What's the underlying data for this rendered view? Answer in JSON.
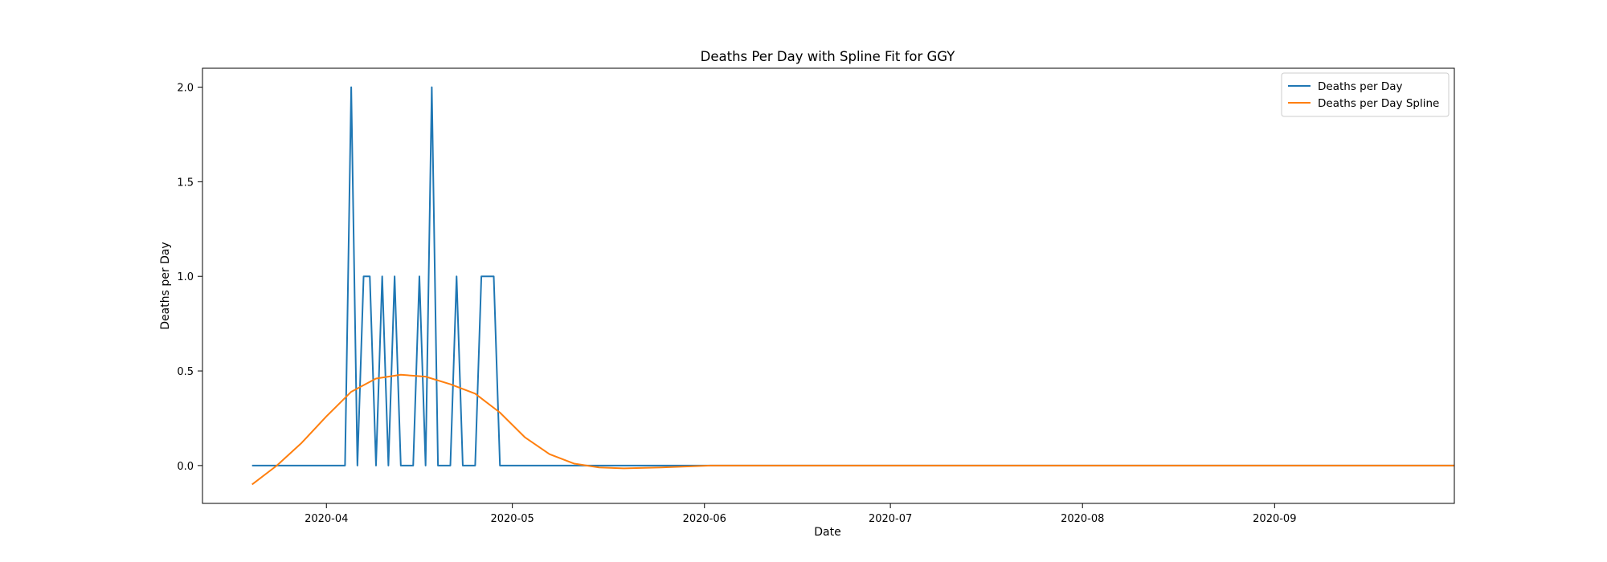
{
  "chart_data": {
    "type": "line",
    "title": "Deaths Per Day with Spline Fit for GGY",
    "xlabel": "Date",
    "ylabel": "Deaths per Day",
    "x_tick_labels": [
      "2020-04",
      "2020-05",
      "2020-06",
      "2020-07",
      "2020-08",
      "2020-09"
    ],
    "x_ticks": [
      "2020-04-01",
      "2020-05-01",
      "2020-06-01",
      "2020-07-01",
      "2020-08-01",
      "2020-09-01"
    ],
    "y_tick_labels": [
      "0.0",
      "0.5",
      "1.0",
      "1.5",
      "2.0"
    ],
    "y_ticks": [
      0,
      0.5,
      1.0,
      1.5,
      2.0
    ],
    "xlim": [
      "2020-03-12",
      "2020-09-30"
    ],
    "ylim": [
      -0.2,
      2.1
    ],
    "grid": false,
    "legend_position": "top-right",
    "series": [
      {
        "name": "Deaths per Day",
        "color": "#1f77b4",
        "points": [
          [
            "2020-03-20",
            0
          ],
          [
            "2020-04-04",
            0
          ],
          [
            "2020-04-05",
            2
          ],
          [
            "2020-04-06",
            0
          ],
          [
            "2020-04-07",
            1
          ],
          [
            "2020-04-08",
            1
          ],
          [
            "2020-04-09",
            0
          ],
          [
            "2020-04-10",
            1
          ],
          [
            "2020-04-11",
            0
          ],
          [
            "2020-04-12",
            1
          ],
          [
            "2020-04-13",
            0
          ],
          [
            "2020-04-15",
            0
          ],
          [
            "2020-04-16",
            1
          ],
          [
            "2020-04-17",
            0
          ],
          [
            "2020-04-18",
            2
          ],
          [
            "2020-04-19",
            0
          ],
          [
            "2020-04-21",
            0
          ],
          [
            "2020-04-22",
            1
          ],
          [
            "2020-04-23",
            0
          ],
          [
            "2020-04-25",
            0
          ],
          [
            "2020-04-26",
            1
          ],
          [
            "2020-04-28",
            1
          ],
          [
            "2020-04-29",
            0
          ],
          [
            "2020-09-30",
            0
          ]
        ]
      },
      {
        "name": "Deaths per Day Spline",
        "color": "#ff7f0e",
        "points": [
          [
            "2020-03-20",
            -0.1
          ],
          [
            "2020-03-24",
            0.0
          ],
          [
            "2020-03-28",
            0.12
          ],
          [
            "2020-04-01",
            0.26
          ],
          [
            "2020-04-05",
            0.39
          ],
          [
            "2020-04-09",
            0.46
          ],
          [
            "2020-04-13",
            0.48
          ],
          [
            "2020-04-17",
            0.47
          ],
          [
            "2020-04-21",
            0.43
          ],
          [
            "2020-04-25",
            0.38
          ],
          [
            "2020-04-29",
            0.28
          ],
          [
            "2020-05-03",
            0.15
          ],
          [
            "2020-05-07",
            0.06
          ],
          [
            "2020-05-11",
            0.01
          ],
          [
            "2020-05-15",
            -0.01
          ],
          [
            "2020-05-19",
            -0.015
          ],
          [
            "2020-05-25",
            -0.01
          ],
          [
            "2020-06-02",
            0.0
          ],
          [
            "2020-06-15",
            0.0
          ],
          [
            "2020-07-15",
            0.0
          ],
          [
            "2020-08-15",
            0.0
          ],
          [
            "2020-09-30",
            0.0
          ]
        ]
      }
    ]
  }
}
